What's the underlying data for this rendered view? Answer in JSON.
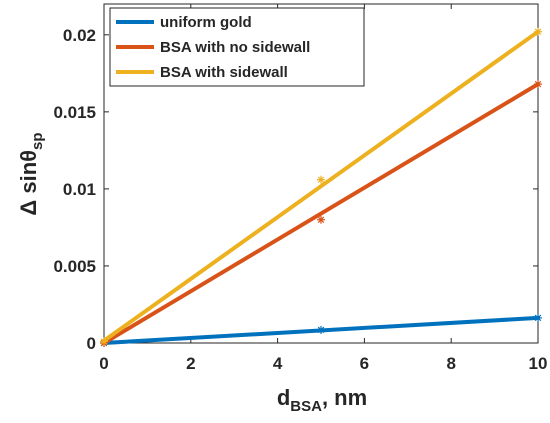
{
  "chart_data": {
    "type": "line",
    "xlabel": {
      "main": "d",
      "sub": "BSA",
      "suffix": ", nm"
    },
    "ylabel": {
      "main": "Δ sinθ",
      "sub": "sp"
    },
    "xlim": [
      0,
      10
    ],
    "ylim": [
      0,
      0.022
    ],
    "x_ticks": [
      0,
      2,
      4,
      6,
      8,
      10
    ],
    "x_tick_labels": [
      "0",
      "2",
      "4",
      "6",
      "8",
      "10"
    ],
    "y_ticks": [
      0,
      0.005,
      0.01,
      0.015,
      0.02
    ],
    "y_tick_labels": [
      "0",
      "0.005",
      "0.01",
      "0.015",
      "0.02"
    ],
    "grid": false,
    "legend_position": "top-left",
    "series": [
      {
        "name": "uniform gold",
        "color": "#0072BD",
        "line": {
          "x": [
            0,
            10
          ],
          "y": [
            0,
            0.00163
          ]
        },
        "markers": {
          "x": [
            0,
            5,
            10
          ],
          "y": [
            0,
            0.00085,
            0.00163
          ]
        }
      },
      {
        "name": "BSA with no sidewall",
        "color": "#D95319",
        "line": {
          "x": [
            0,
            10
          ],
          "y": [
            0,
            0.0168
          ]
        },
        "markers": {
          "x": [
            0,
            5,
            10
          ],
          "y": [
            0,
            0.008,
            0.0168
          ]
        }
      },
      {
        "name": "BSA with sidewall",
        "color": "#EDB120",
        "line": {
          "x": [
            0,
            10
          ],
          "y": [
            0.00015,
            0.0202
          ]
        },
        "markers": {
          "x": [
            0,
            5,
            10
          ],
          "y": [
            0.0001,
            0.0106,
            0.0202
          ]
        }
      }
    ]
  }
}
